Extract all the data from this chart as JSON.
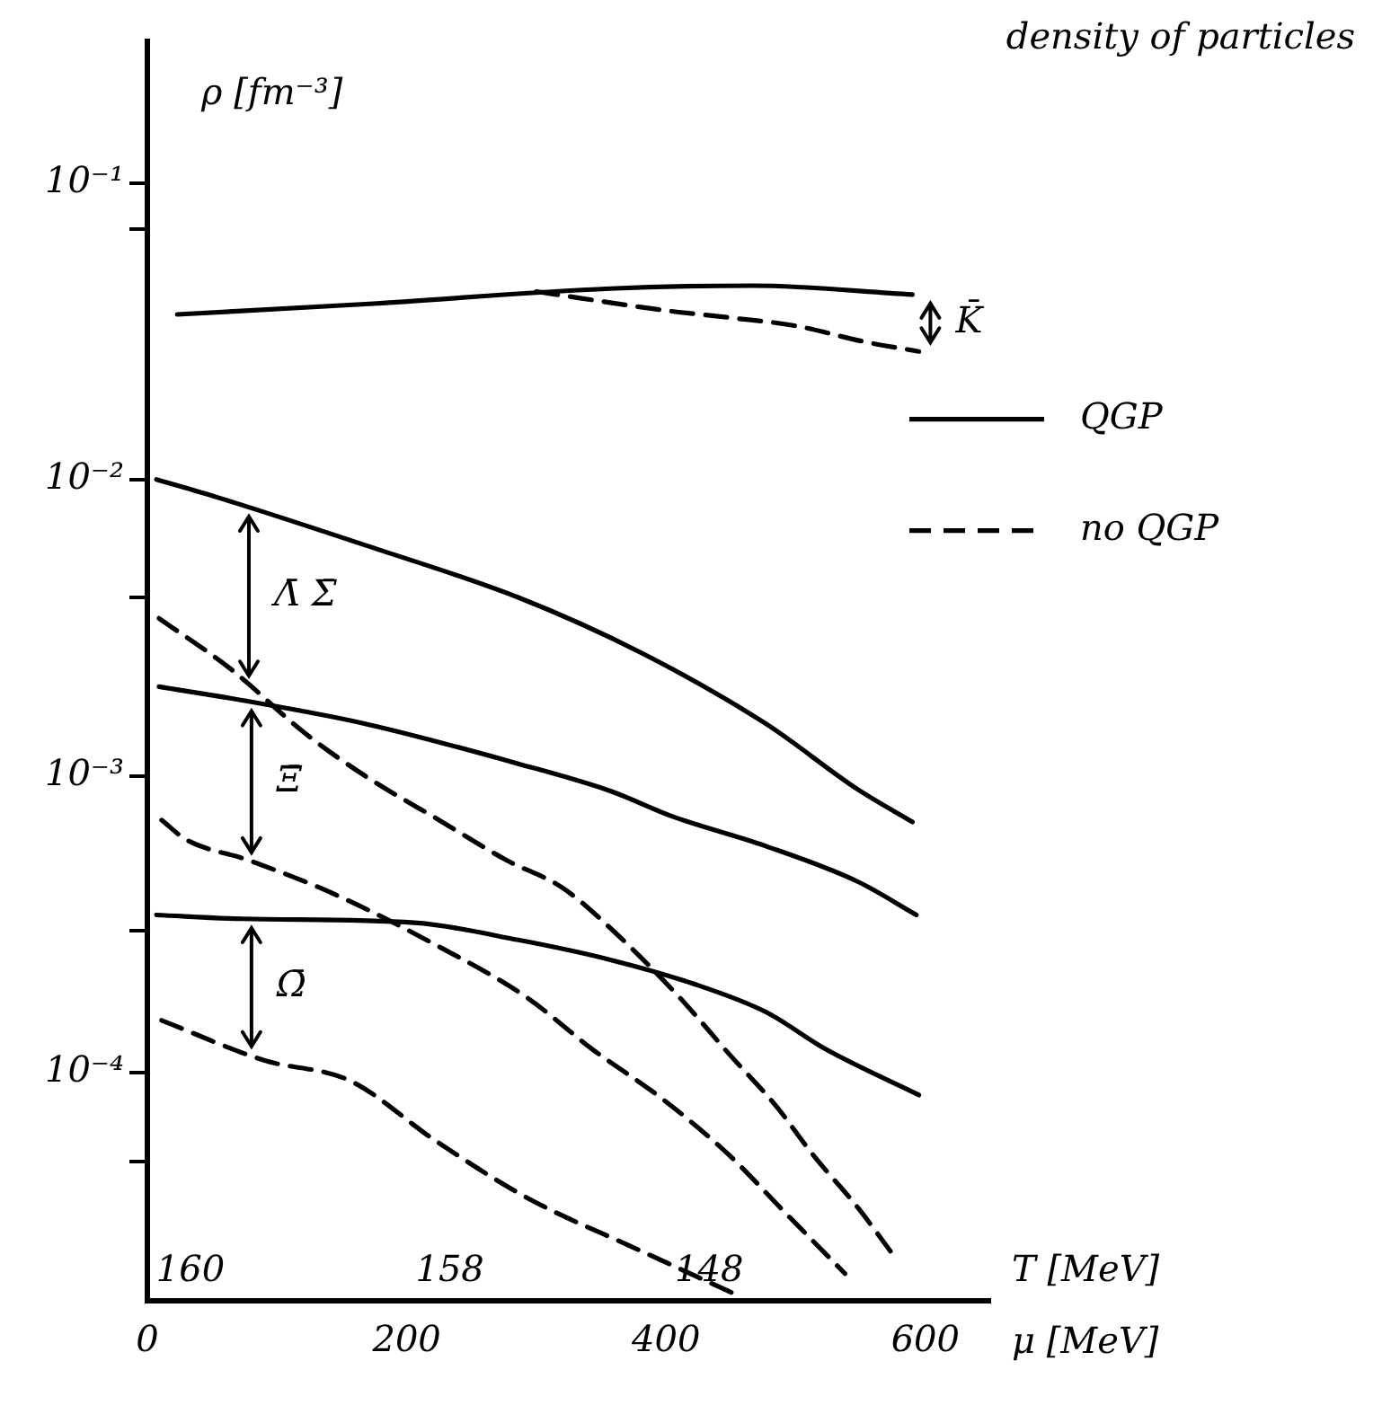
{
  "chart_data": {
    "type": "line",
    "title": "density of particles",
    "ylabel": "ρ [fm⁻³]",
    "xlabel": "μ [MeV]",
    "x2label": "T [MeV]",
    "log": "y",
    "xlim": [
      0,
      650
    ],
    "xticks": [
      0,
      200,
      400,
      600
    ],
    "ylim": [
      1.7e-05,
      0.3
    ],
    "yticks": [
      {
        "value": 0.1,
        "label": "10⁻¹"
      },
      {
        "value": 0.07,
        "label": null
      },
      {
        "value": 0.01,
        "label": "10⁻²"
      },
      {
        "value": 0.004,
        "label": null
      },
      {
        "value": 0.001,
        "label": "10⁻³"
      },
      {
        "value": 0.0003,
        "label": null
      },
      {
        "value": 0.0001,
        "label": "10⁻⁴"
      },
      {
        "value": 5e-05,
        "label": null
      }
    ],
    "legend": "right",
    "marker": "none",
    "series": [
      {
        "name": "QGP",
        "color": "#000000",
        "line_style": "solid",
        "x": [
          23,
          168,
          357,
          467,
          590
        ],
        "values": [
          0.036,
          0.039,
          0.044,
          0.045,
          0.042
        ]
      },
      {
        "name": "no QGP",
        "color": "#000000",
        "line_style": "dashed",
        "x": [
          300,
          402,
          452,
          499,
          555,
          595
        ],
        "values": [
          0.043,
          0.037,
          0.035,
          0.033,
          0.029,
          0.027
        ]
      },
      {
        "color": "#000000",
        "line_style": "solid",
        "x": [
          7,
          54,
          168,
          286,
          381,
          477,
          548,
          590
        ],
        "values": [
          0.01,
          0.0087,
          0.006,
          0.004,
          0.0026,
          0.0015,
          0.0009,
          0.0007
        ]
      },
      {
        "color": "#000000",
        "line_style": "dashed",
        "x": [
          9,
          64,
          121,
          168,
          225,
          277,
          320,
          356,
          410,
          449,
          485,
          513,
          548,
          576
        ],
        "values": [
          0.0034,
          0.0023,
          0.0014,
          0.001,
          0.00071,
          0.00052,
          0.00042,
          0.00031,
          0.00018,
          0.000115,
          7.7e-05,
          5.3e-05,
          3.5e-05,
          2.4e-05
        ]
      },
      {
        "color": "#000000",
        "line_style": "solid",
        "x": [
          9,
          73,
          168,
          286,
          357,
          405,
          477,
          548,
          593
        ],
        "values": [
          0.002,
          0.0018,
          0.0015,
          0.0011,
          0.00089,
          0.00073,
          0.00058,
          0.00044,
          0.00034
        ]
      },
      {
        "color": "#000000",
        "line_style": "dashed",
        "x": [
          11,
          30,
          78,
          144,
          222,
          292,
          343,
          398,
          448,
          491,
          538
        ],
        "values": [
          0.00071,
          0.00061,
          0.00052,
          0.0004,
          0.00027,
          0.00018,
          0.00012,
          8.1e-05,
          5.3e-05,
          3.4e-05,
          2.1e-05
        ]
      },
      {
        "color": "#000000",
        "line_style": "solid",
        "x": [
          7,
          73,
          206,
          286,
          357,
          420,
          477,
          523,
          595
        ],
        "values": [
          0.00034,
          0.00033,
          0.00032,
          0.00028,
          0.00024,
          0.0002,
          0.00016,
          0.00012,
          8.4e-05
        ]
      },
      {
        "color": "#000000",
        "line_style": "dashed",
        "x": [
          11,
          90,
          156,
          222,
          292,
          381,
          452
        ],
        "values": [
          0.00015,
          0.00011,
          9.4e-05,
          5.9e-05,
          3.8e-05,
          2.5e-05,
          1.8e-05
        ]
      }
    ],
    "annotations": [
      "K̄",
      "Λ̄ Σ̄",
      "Ξ̄",
      "Ω̄",
      "160",
      "158",
      "148"
    ]
  }
}
